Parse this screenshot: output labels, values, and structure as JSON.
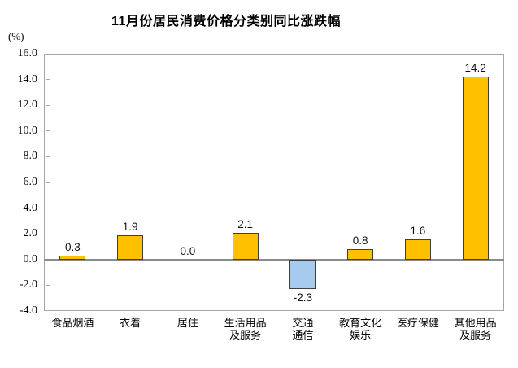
{
  "chart_data": {
    "type": "bar",
    "title": "11月份居民消费价格分类别同比涨跌幅",
    "unit_label": "(%)",
    "categories": [
      "食品烟酒",
      "衣着",
      "居住",
      "生活用品及服务",
      "交通通信",
      "教育文化娱乐",
      "医疗保健",
      "其他用品及服务"
    ],
    "category_label_lines": [
      [
        "食品烟酒"
      ],
      [
        "衣着"
      ],
      [
        "居住"
      ],
      [
        "生活用品",
        "及服务"
      ],
      [
        "交通",
        "通信"
      ],
      [
        "教育文化",
        "娱乐"
      ],
      [
        "医疗保健"
      ],
      [
        "其他用品",
        "及服务"
      ]
    ],
    "values": [
      0.3,
      1.9,
      0.0,
      2.1,
      -2.3,
      0.8,
      1.6,
      14.2
    ],
    "data_labels": [
      "0.3",
      "1.9",
      "0.0",
      "2.1",
      "-2.3",
      "0.8",
      "1.6",
      "14.2"
    ],
    "ylabel": "",
    "xlabel": "",
    "ylim": [
      -4.0,
      16.0
    ],
    "ytick_step": 2.0,
    "ytick_labels": [
      "16.0",
      "14.0",
      "12.0",
      "10.0",
      "8.0",
      "6.0",
      "4.0",
      "2.0",
      "0.0",
      "-2.0",
      "-4.0"
    ],
    "grid": false,
    "legend": "none",
    "colors": {
      "positive_bar_fill": "#FFC000",
      "negative_bar_fill": "#A6CBEE",
      "bar_border": "#3F3F3F",
      "axis_line": "#A6A6A6",
      "zero_line": "#8C8C8C",
      "text": "#000000",
      "background": "#FFFFFF"
    }
  }
}
